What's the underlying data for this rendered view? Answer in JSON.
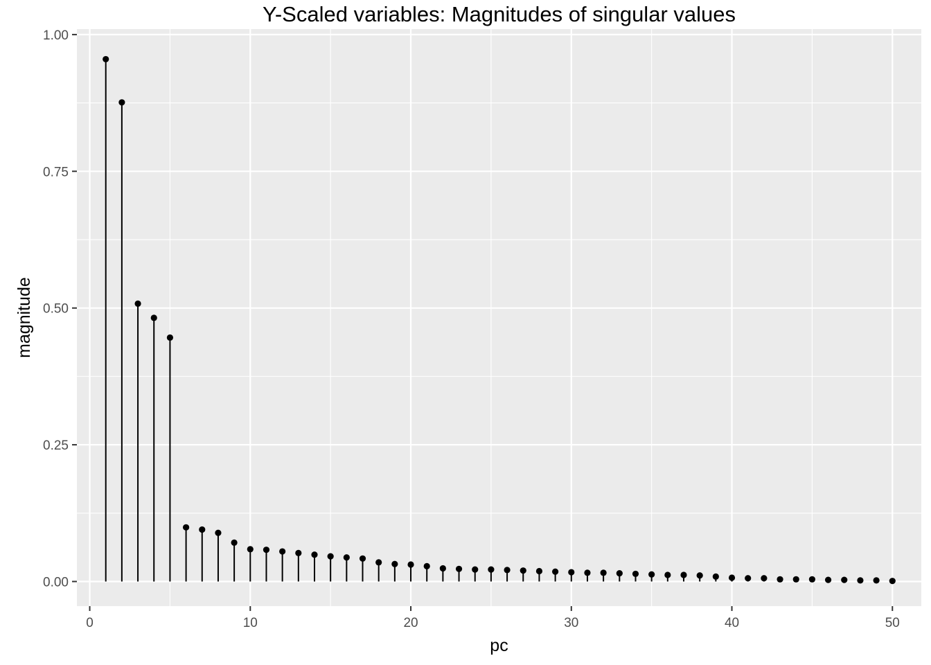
{
  "chart_data": {
    "type": "scatter",
    "style": "lollipop",
    "title": "Y-Scaled variables: Magnitudes of singular values",
    "xlabel": "pc",
    "ylabel": "magnitude",
    "xlim": [
      -0.8,
      51.8
    ],
    "ylim": [
      -0.045,
      1.01
    ],
    "x_ticks": [
      0,
      10,
      20,
      30,
      40,
      50
    ],
    "x_tick_labels": [
      "0",
      "10",
      "20",
      "30",
      "40",
      "50"
    ],
    "y_ticks": [
      0,
      0.25,
      0.5,
      0.75,
      1
    ],
    "y_tick_labels": [
      "0.00",
      "0.25",
      "0.50",
      "0.75",
      "1.00"
    ],
    "grid": true,
    "legend": "none",
    "colors": {
      "panel": "#ebebeb",
      "grid": "#ffffff",
      "mark": "#000000",
      "tick": "#4d4d4d"
    },
    "x": [
      1,
      2,
      3,
      4,
      5,
      6,
      7,
      8,
      9,
      10,
      11,
      12,
      13,
      14,
      15,
      16,
      17,
      18,
      19,
      20,
      21,
      22,
      23,
      24,
      25,
      26,
      27,
      28,
      29,
      30,
      31,
      32,
      33,
      34,
      35,
      36,
      37,
      38,
      39,
      40,
      41,
      42,
      43,
      44,
      45,
      46,
      47,
      48,
      49,
      50
    ],
    "values": [
      0.955,
      0.876,
      0.508,
      0.482,
      0.446,
      0.099,
      0.095,
      0.089,
      0.071,
      0.059,
      0.058,
      0.055,
      0.052,
      0.049,
      0.046,
      0.044,
      0.042,
      0.035,
      0.032,
      0.031,
      0.028,
      0.024,
      0.023,
      0.022,
      0.022,
      0.021,
      0.02,
      0.019,
      0.018,
      0.017,
      0.016,
      0.016,
      0.015,
      0.014,
      0.013,
      0.012,
      0.012,
      0.011,
      0.009,
      0.007,
      0.006,
      0.006,
      0.004,
      0.004,
      0.004,
      0.003,
      0.003,
      0.002,
      0.002,
      0.001
    ]
  }
}
